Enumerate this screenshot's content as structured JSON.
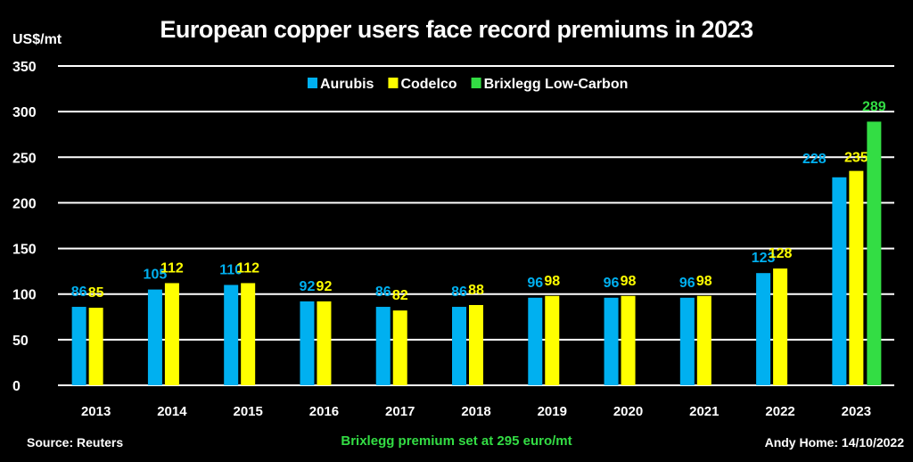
{
  "chart_data": {
    "type": "bar",
    "title": "European copper users face record premiums in 2023",
    "ylabel": "US$/mt",
    "ylim": [
      0,
      350
    ],
    "yticks": [
      0,
      50,
      100,
      150,
      200,
      250,
      300,
      350
    ],
    "grid": true,
    "legend_placement": "top-center",
    "categories": [
      "2013",
      "2014",
      "2015",
      "2016",
      "2017",
      "2018",
      "2019",
      "2020",
      "2021",
      "2022",
      "2023"
    ],
    "series": [
      {
        "name": "Aurubis",
        "color": "#00b0f0",
        "values": [
          86,
          105,
          110,
          92,
          86,
          86,
          96,
          96,
          96,
          123,
          228
        ]
      },
      {
        "name": "Codelco",
        "color": "#ffff00",
        "values": [
          85,
          112,
          112,
          92,
          82,
          88,
          98,
          98,
          98,
          128,
          235
        ]
      },
      {
        "name": "Brixlegg Low-Carbon",
        "color": "#33dd44",
        "values": [
          null,
          null,
          null,
          null,
          null,
          null,
          null,
          null,
          null,
          null,
          289
        ]
      }
    ]
  },
  "footer": {
    "source": "Source: Reuters",
    "note": "Brixlegg premium set at 295 euro/mt",
    "author": "Andy Home: 14/10/2022"
  },
  "colors": {
    "background": "#000000",
    "grid": "#ffffff",
    "note": "#33dd44"
  }
}
